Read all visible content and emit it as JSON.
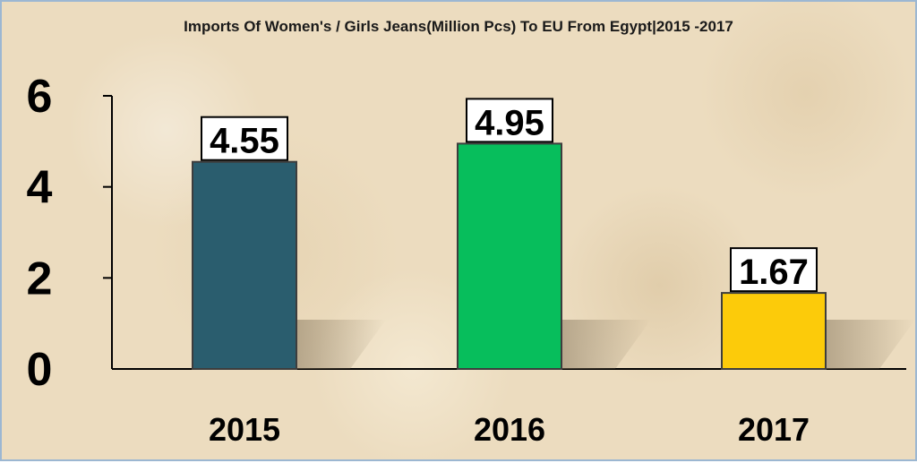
{
  "chart_data": {
    "type": "bar",
    "title": "Imports Of Women's / Girls Jeans(Million Pcs) To EU From Egypt|2015 -2017",
    "xlabel": "",
    "ylabel": "",
    "categories": [
      "2015",
      "2016",
      "2017"
    ],
    "values": [
      4.55,
      4.95,
      1.67
    ],
    "data_labels": [
      "4.55",
      "4.95",
      "1.67"
    ],
    "ylim": [
      0,
      6
    ],
    "yticks": [
      0,
      2,
      4,
      6
    ],
    "ytick_labels": [
      "0",
      "2",
      "4",
      "6"
    ],
    "bar_colors": [
      "#2a5d6e",
      "#07be5c",
      "#fccb0a"
    ],
    "grid": false,
    "legend": "none"
  }
}
